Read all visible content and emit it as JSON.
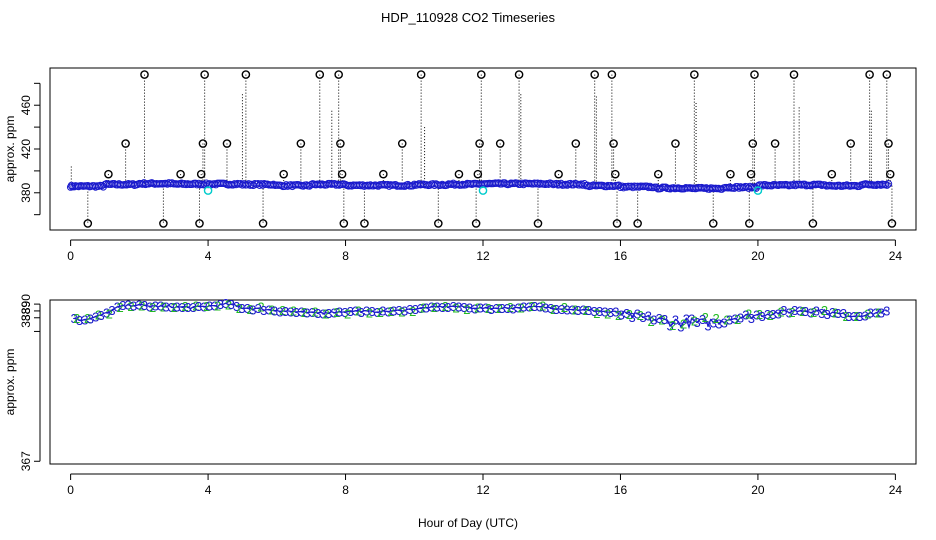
{
  "chart_data": [
    {
      "type": "scatter",
      "panel": "top",
      "title": "HDP_110928  CO2 Timeseries",
      "xlabel": "",
      "ylabel": "approx. ppm",
      "xlim": [
        -0.6,
        24.6
      ],
      "ylim": [
        346,
        494
      ],
      "xticks": [
        0,
        4,
        8,
        12,
        16,
        20,
        24
      ],
      "yticks": [
        380,
        420,
        460
      ],
      "yticks_minor": [
        360,
        400,
        440,
        480
      ],
      "colors": {
        "open_circle": "#000000",
        "main_series": "#1a1acc",
        "cyan": "#00cccc",
        "baseline": "#000000"
      },
      "baseline_segments": [
        [
          0.0,
          0.05,
          386.0
        ],
        [
          0.1,
          0.95,
          386.0
        ],
        [
          1.0,
          1.95,
          387.6
        ],
        [
          2.0,
          2.95,
          388.4
        ],
        [
          3.0,
          3.95,
          388.0
        ],
        [
          4.0,
          4.95,
          388.0
        ],
        [
          5.0,
          5.95,
          387.6
        ],
        [
          6.0,
          6.95,
          386.6
        ],
        [
          7.0,
          7.95,
          387.6
        ],
        [
          8.0,
          8.95,
          386.8
        ],
        [
          9.0,
          9.95,
          386.8
        ],
        [
          10.0,
          10.95,
          387.4
        ],
        [
          11.0,
          11.95,
          387.8
        ],
        [
          12.0,
          12.95,
          388.2
        ],
        [
          13.0,
          13.95,
          388.2
        ],
        [
          14.0,
          14.95,
          387.8
        ],
        [
          15.0,
          15.95,
          386.4
        ],
        [
          16.0,
          16.95,
          385.4
        ],
        [
          17.0,
          17.95,
          384.4
        ],
        [
          18.0,
          18.95,
          384.0
        ],
        [
          19.0,
          19.95,
          385.0
        ],
        [
          20.0,
          20.95,
          386.8
        ],
        [
          21.0,
          21.95,
          387.2
        ],
        [
          22.0,
          22.95,
          386.4
        ],
        [
          23.0,
          23.8,
          387.6
        ]
      ],
      "open_circles": [
        [
          0.5,
          352
        ],
        [
          1.1,
          397
        ],
        [
          1.6,
          425
        ],
        [
          2.15,
          488
        ],
        [
          2.7,
          352
        ],
        [
          3.2,
          397
        ],
        [
          3.75,
          352
        ],
        [
          3.8,
          397
        ],
        [
          3.85,
          425
        ],
        [
          3.9,
          488
        ],
        [
          4.55,
          425
        ],
        [
          5.1,
          488
        ],
        [
          5.6,
          352
        ],
        [
          6.2,
          397
        ],
        [
          6.7,
          425
        ],
        [
          7.25,
          488
        ],
        [
          7.8,
          488
        ],
        [
          7.85,
          425
        ],
        [
          7.9,
          397
        ],
        [
          7.95,
          352
        ],
        [
          8.55,
          352
        ],
        [
          9.1,
          397
        ],
        [
          9.65,
          425
        ],
        [
          10.2,
          488
        ],
        [
          10.7,
          352
        ],
        [
          11.3,
          397
        ],
        [
          11.8,
          352
        ],
        [
          11.85,
          397
        ],
        [
          11.9,
          425
        ],
        [
          11.95,
          488
        ],
        [
          12.5,
          425
        ],
        [
          13.05,
          488
        ],
        [
          13.6,
          352
        ],
        [
          14.2,
          397
        ],
        [
          14.7,
          425
        ],
        [
          15.25,
          488
        ],
        [
          15.75,
          488
        ],
        [
          15.8,
          425
        ],
        [
          15.85,
          397
        ],
        [
          15.9,
          352
        ],
        [
          16.5,
          352
        ],
        [
          17.1,
          397
        ],
        [
          17.6,
          425
        ],
        [
          18.15,
          488
        ],
        [
          18.7,
          352
        ],
        [
          19.2,
          397
        ],
        [
          19.75,
          352
        ],
        [
          19.8,
          397
        ],
        [
          19.85,
          425
        ],
        [
          19.9,
          488
        ],
        [
          20.5,
          425
        ],
        [
          21.05,
          488
        ],
        [
          21.6,
          352
        ],
        [
          22.15,
          397
        ],
        [
          22.7,
          425
        ],
        [
          23.25,
          488
        ],
        [
          23.75,
          488
        ],
        [
          23.8,
          425
        ],
        [
          23.85,
          397
        ],
        [
          23.9,
          352
        ]
      ],
      "cyan_circles": [
        [
          4.0,
          382
        ],
        [
          12.0,
          382
        ],
        [
          20.0,
          382
        ]
      ]
    },
    {
      "type": "line",
      "panel": "bottom",
      "title": "",
      "xlabel": "Hour of Day (UTC)",
      "ylabel": "approx. ppm",
      "xlim": [
        -0.6,
        24.6
      ],
      "ylim": [
        366.6,
        390.6
      ],
      "xticks": [
        0,
        4,
        8,
        12,
        16,
        20,
        24
      ],
      "yticks": [
        367,
        388,
        389,
        390
      ],
      "yticks_minor": [
        386
      ],
      "yticks_labels": [
        "367",
        "388",
        "389",
        "390"
      ],
      "colors": {
        "line": "#1a1acc",
        "marker_3": "#1a1acc",
        "marker_2": "#22bb22"
      },
      "markers": {
        "series_a_label": "3",
        "series_b_label": "2"
      },
      "series_anchors": [
        [
          0.1,
          388.0
        ],
        [
          0.3,
          387.7
        ],
        [
          0.6,
          387.9
        ],
        [
          1.0,
          388.6
        ],
        [
          1.4,
          389.6
        ],
        [
          1.8,
          389.9
        ],
        [
          2.4,
          389.7
        ],
        [
          3.0,
          389.6
        ],
        [
          3.6,
          389.5
        ],
        [
          4.0,
          389.7
        ],
        [
          4.6,
          390.0
        ],
        [
          5.0,
          389.5
        ],
        [
          5.5,
          389.3
        ],
        [
          6.0,
          389.1
        ],
        [
          6.5,
          388.9
        ],
        [
          7.0,
          388.7
        ],
        [
          7.5,
          388.8
        ],
        [
          7.9,
          388.9
        ],
        [
          8.3,
          389.0
        ],
        [
          8.8,
          388.9
        ],
        [
          9.4,
          389.0
        ],
        [
          10.0,
          389.3
        ],
        [
          10.6,
          389.6
        ],
        [
          11.2,
          389.7
        ],
        [
          11.6,
          389.5
        ],
        [
          12.0,
          389.4
        ],
        [
          12.5,
          389.4
        ],
        [
          13.0,
          389.5
        ],
        [
          13.6,
          389.6
        ],
        [
          14.2,
          389.4
        ],
        [
          14.8,
          389.2
        ],
        [
          15.4,
          389.0
        ],
        [
          15.9,
          388.7
        ],
        [
          16.4,
          388.3
        ],
        [
          16.9,
          387.8
        ],
        [
          17.4,
          387.5
        ],
        [
          17.9,
          387.3
        ],
        [
          18.4,
          387.3
        ],
        [
          18.9,
          387.6
        ],
        [
          19.3,
          388.0
        ],
        [
          19.8,
          388.3
        ],
        [
          20.3,
          388.6
        ],
        [
          20.8,
          388.9
        ],
        [
          21.3,
          389.1
        ],
        [
          21.8,
          389.0
        ],
        [
          22.3,
          388.6
        ],
        [
          22.8,
          388.3
        ],
        [
          23.3,
          388.6
        ],
        [
          23.7,
          389.0
        ]
      ],
      "noise": [
        [
          0.0,
          0.15
        ],
        [
          1.2,
          0.15
        ],
        [
          4.0,
          0.2
        ],
        [
          8.0,
          0.12
        ],
        [
          12.0,
          0.12
        ],
        [
          15.5,
          0.15
        ],
        [
          16.2,
          0.45
        ],
        [
          17.0,
          0.6
        ],
        [
          18.0,
          0.7
        ],
        [
          19.4,
          0.45
        ],
        [
          20.5,
          0.3
        ],
        [
          22.0,
          0.3
        ],
        [
          23.8,
          0.2
        ]
      ]
    }
  ]
}
